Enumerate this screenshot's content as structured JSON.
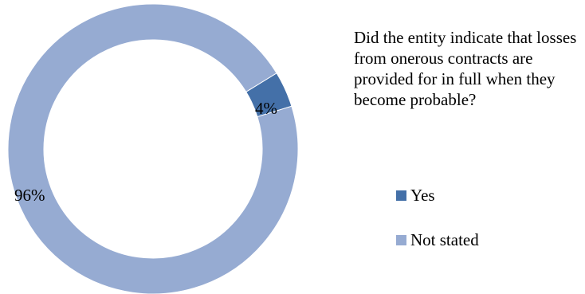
{
  "chart_data": {
    "type": "pie",
    "title": "Did the entity indicate that losses from onerous contracts are provided for in full when they become probable?",
    "categories": [
      "Yes",
      "Not stated"
    ],
    "values": [
      4,
      96
    ],
    "value_labels": [
      "4%",
      "96%"
    ],
    "colors": [
      "#4470a8",
      "#96abd2"
    ],
    "donut": true,
    "legend_position": "right",
    "legend": [
      {
        "label": "Yes",
        "color": "#4470a8"
      },
      {
        "label": "Not stated",
        "color": "#96abd2"
      }
    ]
  }
}
